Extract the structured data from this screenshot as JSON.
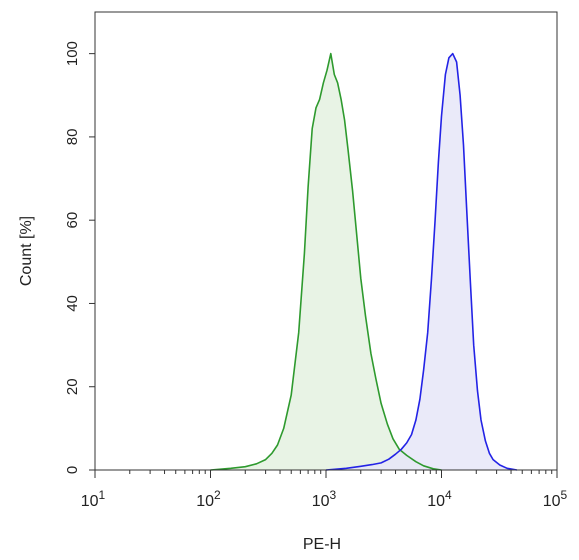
{
  "chart_data": {
    "type": "area",
    "xlabel": "PE-H",
    "ylabel": "Count [%]",
    "xscale": "log",
    "xlim": [
      10,
      100000
    ],
    "ylim": [
      0,
      110
    ],
    "x_ticks": [
      {
        "value": 10,
        "base": "10",
        "exp": "1"
      },
      {
        "value": 100,
        "base": "10",
        "exp": "2"
      },
      {
        "value": 1000,
        "base": "10",
        "exp": "3"
      },
      {
        "value": 10000,
        "base": "10",
        "exp": "4"
      },
      {
        "value": 100000,
        "base": "10",
        "exp": "5"
      }
    ],
    "y_ticks": [
      0,
      20,
      40,
      60,
      80,
      100
    ],
    "grid": false,
    "series": [
      {
        "color": "#2e9a2e",
        "fill": "#e4f1e0",
        "points": [
          [
            100,
            0
          ],
          [
            150,
            0.4
          ],
          [
            200,
            0.8
          ],
          [
            250,
            1.5
          ],
          [
            300,
            2.5
          ],
          [
            340,
            4
          ],
          [
            380,
            6
          ],
          [
            430,
            10
          ],
          [
            500,
            18
          ],
          [
            580,
            33
          ],
          [
            650,
            52
          ],
          [
            700,
            68
          ],
          [
            760,
            82
          ],
          [
            820,
            87
          ],
          [
            880,
            89
          ],
          [
            950,
            93
          ],
          [
            1020,
            96
          ],
          [
            1100,
            100
          ],
          [
            1180,
            95
          ],
          [
            1260,
            93
          ],
          [
            1350,
            89
          ],
          [
            1450,
            84
          ],
          [
            1550,
            77
          ],
          [
            1700,
            67
          ],
          [
            1850,
            56
          ],
          [
            2000,
            46
          ],
          [
            2200,
            37
          ],
          [
            2450,
            28
          ],
          [
            2700,
            22
          ],
          [
            3000,
            16
          ],
          [
            3400,
            11
          ],
          [
            3800,
            7.5
          ],
          [
            4300,
            5
          ],
          [
            5000,
            3.5
          ],
          [
            6000,
            2
          ],
          [
            7000,
            1
          ],
          [
            8500,
            0.3
          ],
          [
            10000,
            0
          ]
        ]
      },
      {
        "color": "#2323e6",
        "fill": "#e6e6f8",
        "points": [
          [
            1000,
            0
          ],
          [
            1500,
            0.4
          ],
          [
            2000,
            0.9
          ],
          [
            2500,
            1.3
          ],
          [
            3000,
            1.7
          ],
          [
            3500,
            2.6
          ],
          [
            4000,
            3.8
          ],
          [
            4500,
            5
          ],
          [
            5000,
            6.5
          ],
          [
            5500,
            8.5
          ],
          [
            6000,
            12
          ],
          [
            6500,
            17
          ],
          [
            7000,
            24
          ],
          [
            7600,
            33
          ],
          [
            8200,
            46
          ],
          [
            8800,
            60
          ],
          [
            9400,
            74
          ],
          [
            10000,
            85
          ],
          [
            10800,
            95
          ],
          [
            11600,
            99
          ],
          [
            12500,
            100
          ],
          [
            13500,
            98
          ],
          [
            14500,
            90
          ],
          [
            15500,
            78
          ],
          [
            16500,
            63
          ],
          [
            17800,
            45
          ],
          [
            19000,
            30
          ],
          [
            20500,
            19
          ],
          [
            22000,
            12
          ],
          [
            24000,
            7
          ],
          [
            26000,
            4
          ],
          [
            28000,
            2.5
          ],
          [
            32000,
            1.2
          ],
          [
            37000,
            0.4
          ],
          [
            45000,
            0
          ]
        ]
      }
    ]
  }
}
